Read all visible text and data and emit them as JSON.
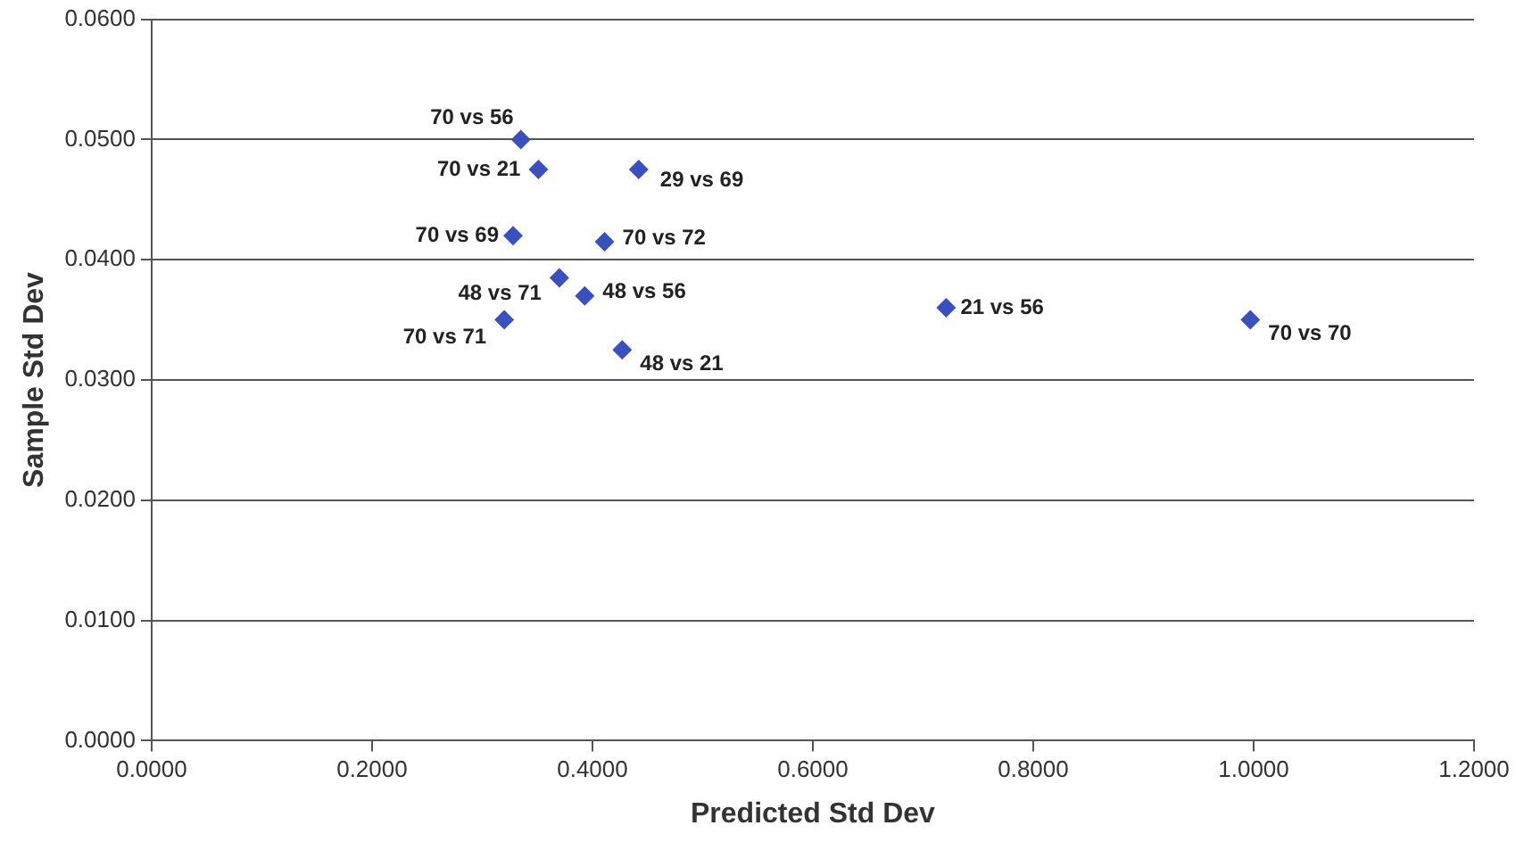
{
  "chart_data": {
    "type": "scatter",
    "xlabel": "Predicted Std Dev",
    "ylabel": "Sample Std Dev",
    "x": [
      0.335,
      0.351,
      0.442,
      0.328,
      0.411,
      0.37,
      0.393,
      0.32,
      0.427,
      0.721,
      0.997
    ],
    "series": [
      {
        "color": "#3a4fc0",
        "values": [
          0.05,
          0.0475,
          0.0475,
          0.042,
          0.0415,
          0.0385,
          0.037,
          0.035,
          0.0325,
          0.036,
          0.035
        ]
      }
    ],
    "xlim": [
      0,
      1.2
    ],
    "xticks": [
      {
        "value": 0,
        "label": "0.0000"
      },
      {
        "value": 0.2,
        "label": "0.2000"
      },
      {
        "value": 0.4,
        "label": "0.4000"
      },
      {
        "value": 0.6,
        "label": "0.6000"
      },
      {
        "value": 0.8,
        "label": "0.8000"
      },
      {
        "value": 1,
        "label": "1.0000"
      },
      {
        "value": 1.2,
        "label": "1.2000"
      }
    ],
    "ylim": [
      0,
      0.06
    ],
    "yticks": [
      {
        "value": 0,
        "label": "0.0000"
      },
      {
        "value": 0.01,
        "label": "0.0100"
      },
      {
        "value": 0.02,
        "label": "0.0200"
      },
      {
        "value": 0.03,
        "label": "0.0300"
      },
      {
        "value": 0.04,
        "label": "0.0400"
      },
      {
        "value": 0.05,
        "label": "0.0500"
      },
      {
        "value": 0.06,
        "label": "0.0600"
      }
    ],
    "grid": "y",
    "legend": false,
    "marker": "diamond",
    "annotations": [
      {
        "text": "70 vs 56",
        "x": 0.335,
        "y": 0.05
      },
      {
        "text": "70 vs 21",
        "x": 0.351,
        "y": 0.0475
      },
      {
        "text": "29 vs 69",
        "x": 0.442,
        "y": 0.0475
      },
      {
        "text": "70 vs 69",
        "x": 0.328,
        "y": 0.042
      },
      {
        "text": "70 vs 72",
        "x": 0.411,
        "y": 0.0415
      },
      {
        "text": "48 vs 71",
        "x": 0.37,
        "y": 0.0385
      },
      {
        "text": "48 vs 56",
        "x": 0.393,
        "y": 0.037
      },
      {
        "text": "70 vs 71",
        "x": 0.32,
        "y": 0.035
      },
      {
        "text": "48 vs 21",
        "x": 0.427,
        "y": 0.0325
      },
      {
        "text": "21 vs 56",
        "x": 0.721,
        "y": 0.036
      },
      {
        "text": "70 vs 70",
        "x": 0.997,
        "y": 0.035
      }
    ]
  }
}
